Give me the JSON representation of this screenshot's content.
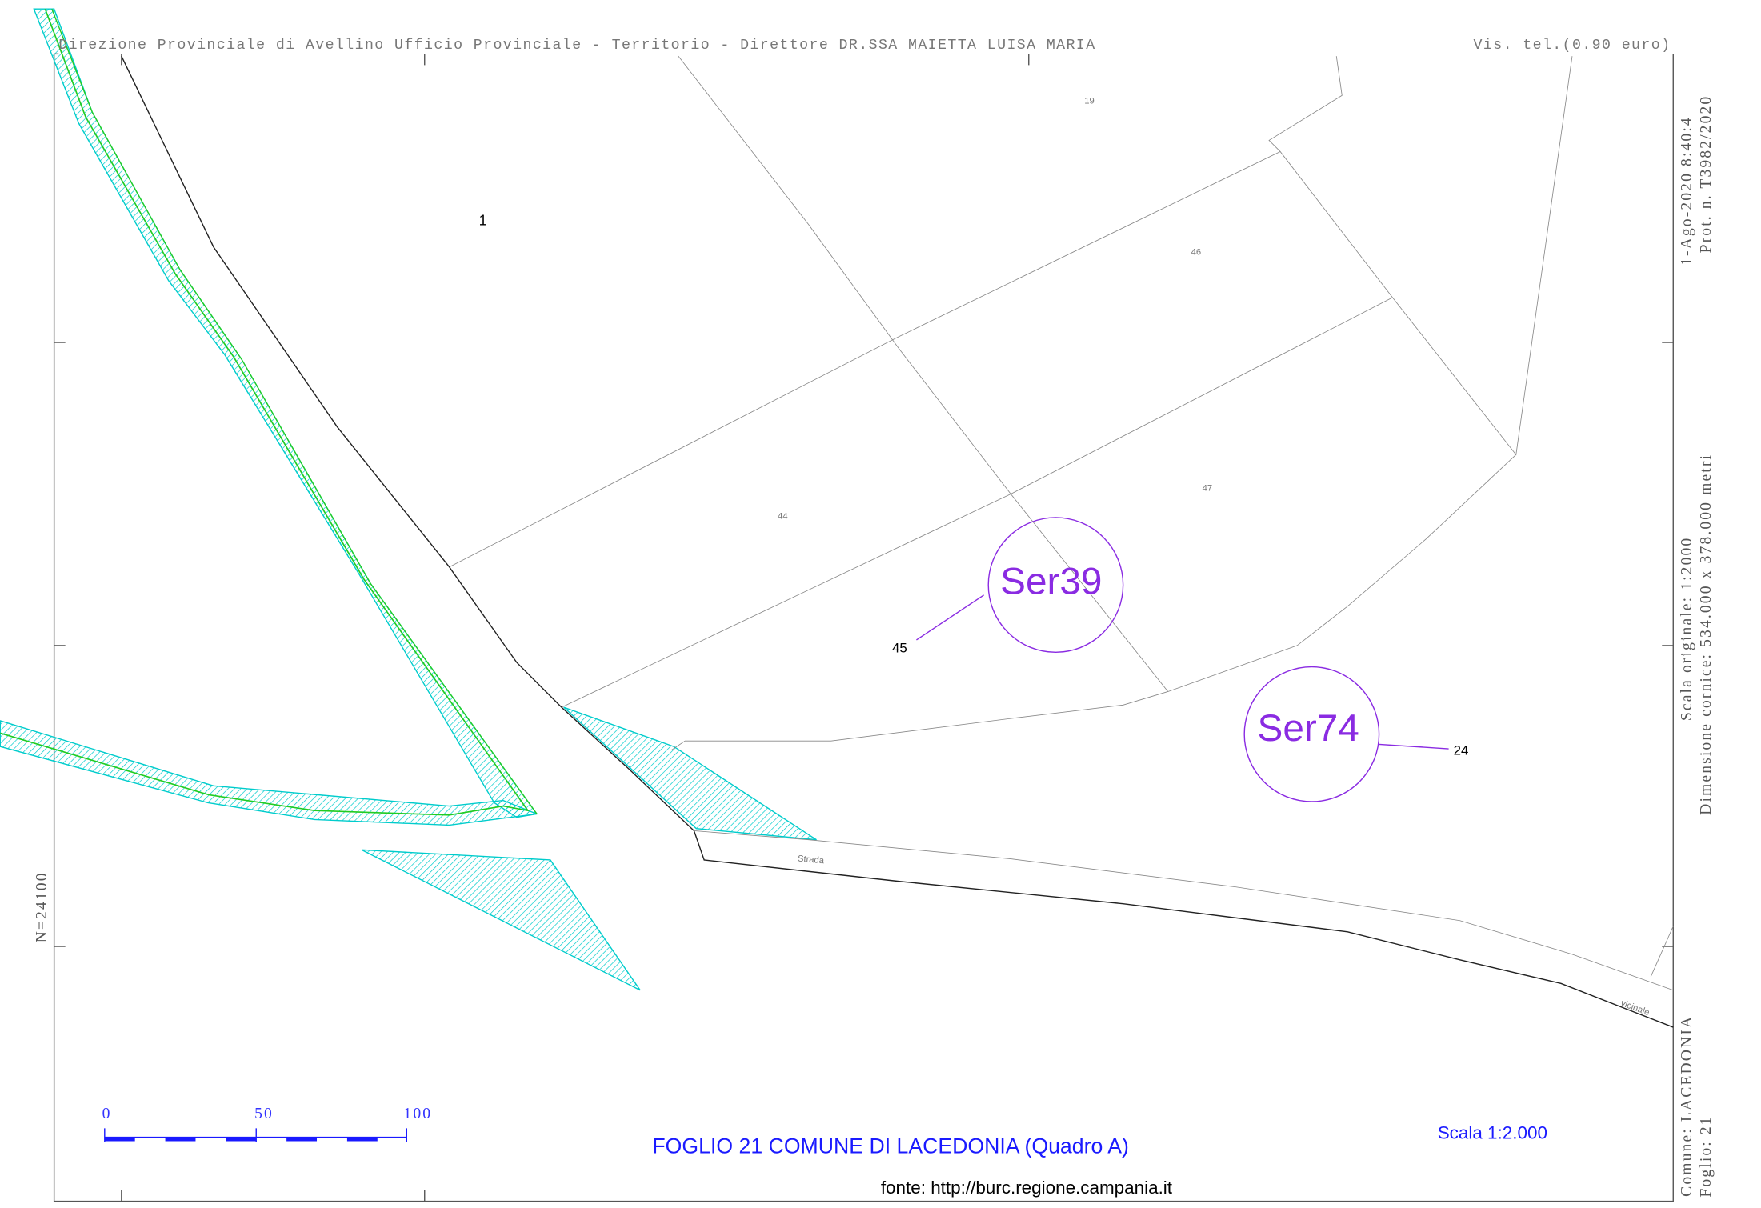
{
  "header": {
    "left": "Direzione Provinciale di Avellino  Ufficio Provinciale - Territorio - Direttore DR.SSA MAIETTA LUISA MARIA",
    "right": "Vis. tel.(0.90 euro)"
  },
  "side": {
    "date": "1-Ago-2020 8:40:4",
    "protocol": "Prot. n. T3982/2020",
    "scale": "Scala originale: 1:2000",
    "size": "Dimensione cornice: 534.000 x 378.000 metri",
    "comune": "Comune: LACEDONIA",
    "foglio": "Foglio: 21"
  },
  "coordinate": "N=24100",
  "parcels": [
    "1",
    "19",
    "46",
    "44",
    "47",
    "45",
    "24"
  ],
  "roads": [
    "Strada",
    "vicinale"
  ],
  "markers": [
    "Ser39",
    "Ser74"
  ],
  "scale_bar": [
    "0",
    "50",
    "100"
  ],
  "title": "FOGLIO 21 COMUNE DI LACEDONIA (Quadro A)",
  "scale_text": "Scala 1:2.000",
  "source": "fonte: http://burc.regione.campania.it"
}
